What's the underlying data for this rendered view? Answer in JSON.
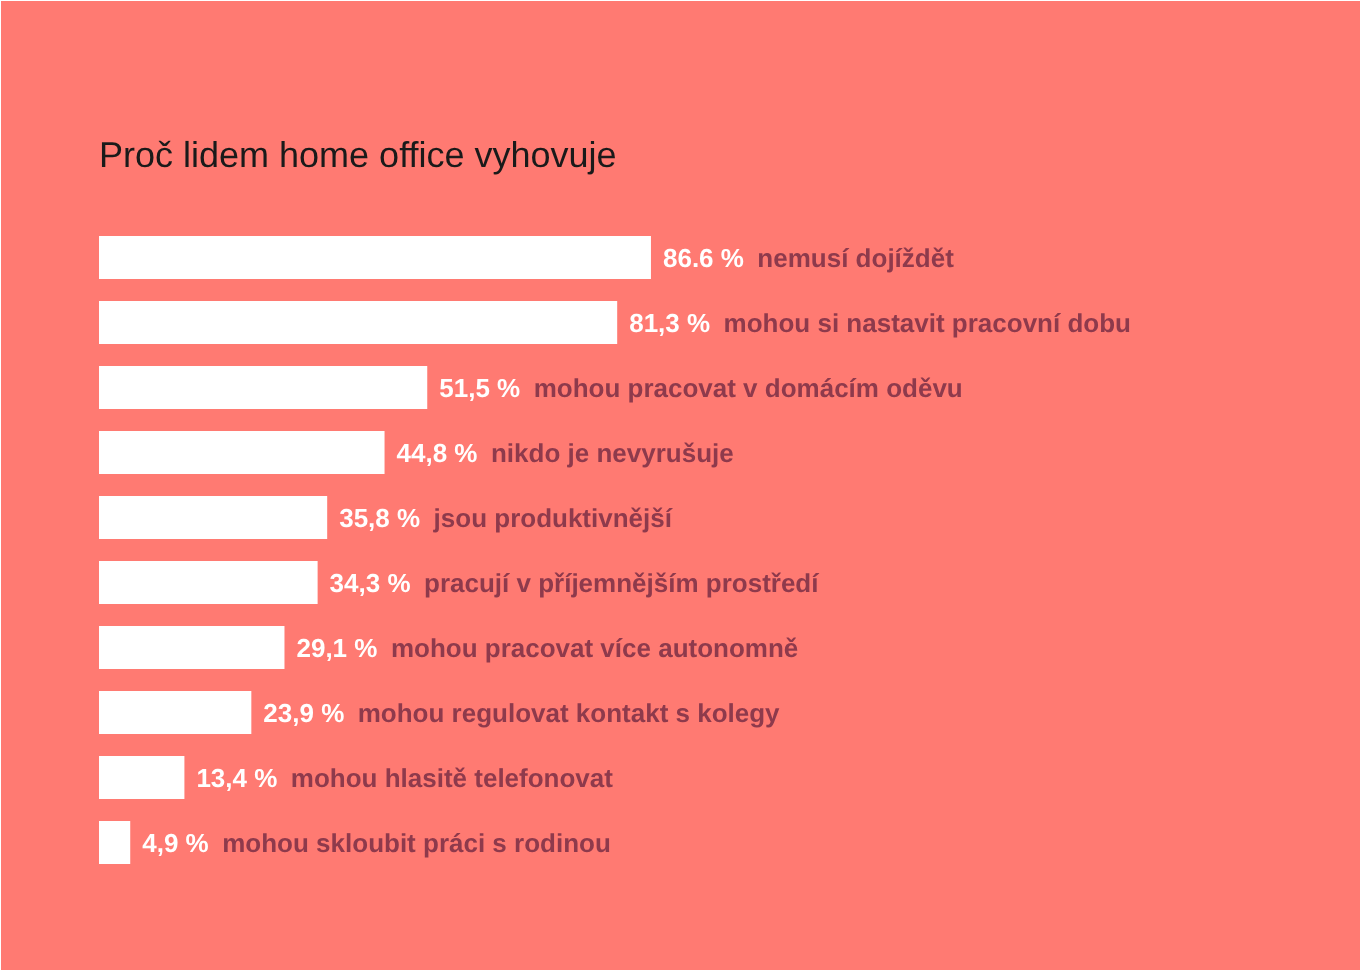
{
  "chart_data": {
    "type": "bar",
    "orientation": "horizontal",
    "title": "Proč lidem home office vyhovuje",
    "categories": [
      "nemusí dojíždět",
      "mohou si nastavit pracovní dobu",
      "mohou pracovat v domácím oděvu",
      "nikdo je nevyrušuje",
      "jsou produktivnější",
      "pracují v příjemnějším prostředí",
      "mohou pracovat více autonomně",
      "mohou regulovat kontakt s kolegy",
      "mohou hlasitě telefonovat",
      "mohou skloubit práci s rodinou"
    ],
    "values": [
      86.6,
      81.3,
      51.5,
      44.8,
      35.8,
      34.3,
      29.1,
      23.9,
      13.4,
      4.9
    ],
    "value_labels": [
      "86.6 %",
      "81,3 %",
      "51,5 %",
      "44,8 %",
      "35,8 %",
      "34,3 %",
      "29,1 %",
      "23,9 %",
      "13,4 %",
      "4,9 %"
    ],
    "color": "#ffffff",
    "xlim": [
      0,
      198
    ],
    "tick_labels": false,
    "grid": false
  }
}
